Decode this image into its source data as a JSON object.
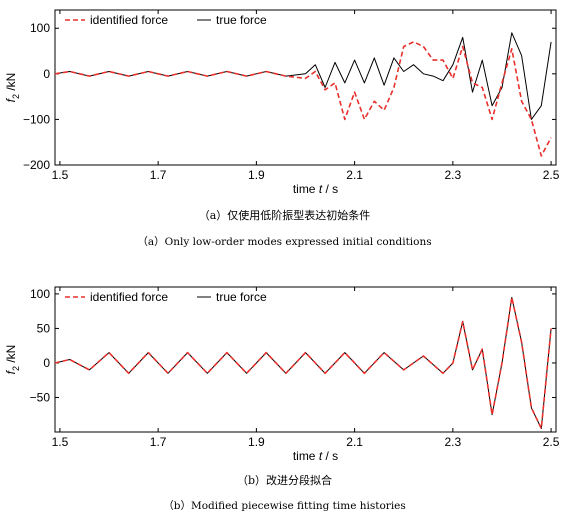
{
  "chart_data": [
    {
      "type": "line",
      "ylabel": "f2 /kN",
      "ylabel_main": "f",
      "ylabel_sub": "2",
      "ylabel_unit": " /kN",
      "xlabel": "time t / s",
      "xlabel_pre": "time ",
      "xlabel_var": "t",
      "xlabel_post": " / s",
      "xlim": [
        1.49,
        2.51
      ],
      "ylim": [
        -200,
        140
      ],
      "xticks": [
        1.5,
        1.7,
        1.9,
        2.1,
        2.3,
        2.5
      ],
      "xtick_labels": [
        "1.5",
        "1.7",
        "1.9",
        "2.1",
        "2.3",
        "2.5"
      ],
      "yticks": [
        -200,
        -100,
        0,
        100
      ],
      "ytick_labels": [
        "−200",
        "−100",
        "0",
        "100"
      ],
      "legend": [
        "identified force",
        "true force"
      ],
      "legend_position": "top-left",
      "series": [
        {
          "name": "identified force",
          "color": "#e8302c",
          "style": "dashed",
          "x": [
            1.49,
            1.52,
            1.56,
            1.6,
            1.64,
            1.68,
            1.72,
            1.76,
            1.8,
            1.84,
            1.88,
            1.92,
            1.96,
            2.0,
            2.02,
            2.04,
            2.06,
            2.08,
            2.1,
            2.12,
            2.14,
            2.16,
            2.18,
            2.2,
            2.22,
            2.24,
            2.26,
            2.28,
            2.3,
            2.32,
            2.34,
            2.36,
            2.38,
            2.4,
            2.42,
            2.44,
            2.46,
            2.48,
            2.5
          ],
          "y": [
            0,
            5,
            -5,
            5,
            -5,
            5,
            -5,
            5,
            -5,
            5,
            -5,
            5,
            -5,
            -10,
            5,
            -35,
            -20,
            -100,
            -40,
            -100,
            -60,
            -80,
            -30,
            60,
            70,
            60,
            30,
            30,
            -10,
            60,
            -20,
            -30,
            -100,
            -20,
            55,
            -60,
            -100,
            -180,
            -140
          ]
        },
        {
          "name": "true force",
          "color": "#000000",
          "style": "solid",
          "x": [
            1.49,
            1.52,
            1.56,
            1.6,
            1.64,
            1.68,
            1.72,
            1.76,
            1.8,
            1.84,
            1.88,
            1.92,
            1.96,
            2.0,
            2.02,
            2.04,
            2.06,
            2.08,
            2.1,
            2.12,
            2.14,
            2.16,
            2.18,
            2.2,
            2.22,
            2.24,
            2.26,
            2.28,
            2.3,
            2.32,
            2.34,
            2.36,
            2.38,
            2.4,
            2.42,
            2.44,
            2.46,
            2.48,
            2.5
          ],
          "y": [
            0,
            5,
            -5,
            5,
            -5,
            5,
            -5,
            5,
            -5,
            5,
            -5,
            5,
            -5,
            0,
            20,
            -30,
            25,
            -20,
            30,
            -20,
            35,
            -25,
            35,
            5,
            20,
            0,
            -5,
            -15,
            20,
            80,
            -40,
            30,
            -70,
            -30,
            90,
            40,
            -100,
            -70,
            70
          ]
        }
      ]
    },
    {
      "type": "line",
      "ylabel": "f2 /kN",
      "ylabel_main": "f",
      "ylabel_sub": "2",
      "ylabel_unit": " /kN",
      "xlabel": "time t / s",
      "xlabel_pre": "time ",
      "xlabel_var": "t",
      "xlabel_post": " / s",
      "xlim": [
        1.49,
        2.51
      ],
      "ylim": [
        -100,
        110
      ],
      "xticks": [
        1.5,
        1.7,
        1.9,
        2.1,
        2.3,
        2.5
      ],
      "xtick_labels": [
        "1.5",
        "1.7",
        "1.9",
        "2.1",
        "2.3",
        "2.5"
      ],
      "yticks": [
        -50,
        0,
        50,
        100
      ],
      "ytick_labels": [
        "−50",
        "0",
        "50",
        "100"
      ],
      "legend": [
        "identified force",
        "true force"
      ],
      "legend_position": "top-left",
      "series": [
        {
          "name": "identified force",
          "color": "#e8302c",
          "style": "dashed",
          "x": [
            1.49,
            1.52,
            1.56,
            1.6,
            1.64,
            1.68,
            1.72,
            1.76,
            1.8,
            1.84,
            1.88,
            1.92,
            1.96,
            2.0,
            2.04,
            2.08,
            2.12,
            2.16,
            2.2,
            2.24,
            2.28,
            2.3,
            2.32,
            2.34,
            2.36,
            2.38,
            2.4,
            2.42,
            2.44,
            2.46,
            2.48,
            2.5
          ],
          "y": [
            0,
            5,
            -10,
            15,
            -15,
            15,
            -15,
            15,
            -15,
            15,
            -15,
            15,
            -15,
            15,
            -15,
            15,
            -15,
            15,
            -10,
            10,
            -15,
            0,
            60,
            -10,
            20,
            -75,
            0,
            95,
            30,
            -65,
            -95,
            50
          ]
        },
        {
          "name": "true force",
          "color": "#000000",
          "style": "solid",
          "x": [
            1.49,
            1.52,
            1.56,
            1.6,
            1.64,
            1.68,
            1.72,
            1.76,
            1.8,
            1.84,
            1.88,
            1.92,
            1.96,
            2.0,
            2.04,
            2.08,
            2.12,
            2.16,
            2.2,
            2.24,
            2.28,
            2.3,
            2.32,
            2.34,
            2.36,
            2.38,
            2.4,
            2.42,
            2.44,
            2.46,
            2.48,
            2.5
          ],
          "y": [
            0,
            5,
            -10,
            15,
            -15,
            15,
            -15,
            15,
            -15,
            15,
            -15,
            15,
            -15,
            15,
            -15,
            15,
            -15,
            15,
            -10,
            10,
            -15,
            0,
            60,
            -10,
            20,
            -75,
            0,
            95,
            30,
            -65,
            -95,
            50
          ]
        }
      ]
    }
  ],
  "captions": {
    "a_cn": "（a）仅使用低阶振型表达初始条件",
    "a_en": "（a）Only low-order modes expressed initial conditions",
    "b_cn": "（b）改进分段拟合",
    "b_en": "（b）Modified piecewise fitting time histories"
  }
}
